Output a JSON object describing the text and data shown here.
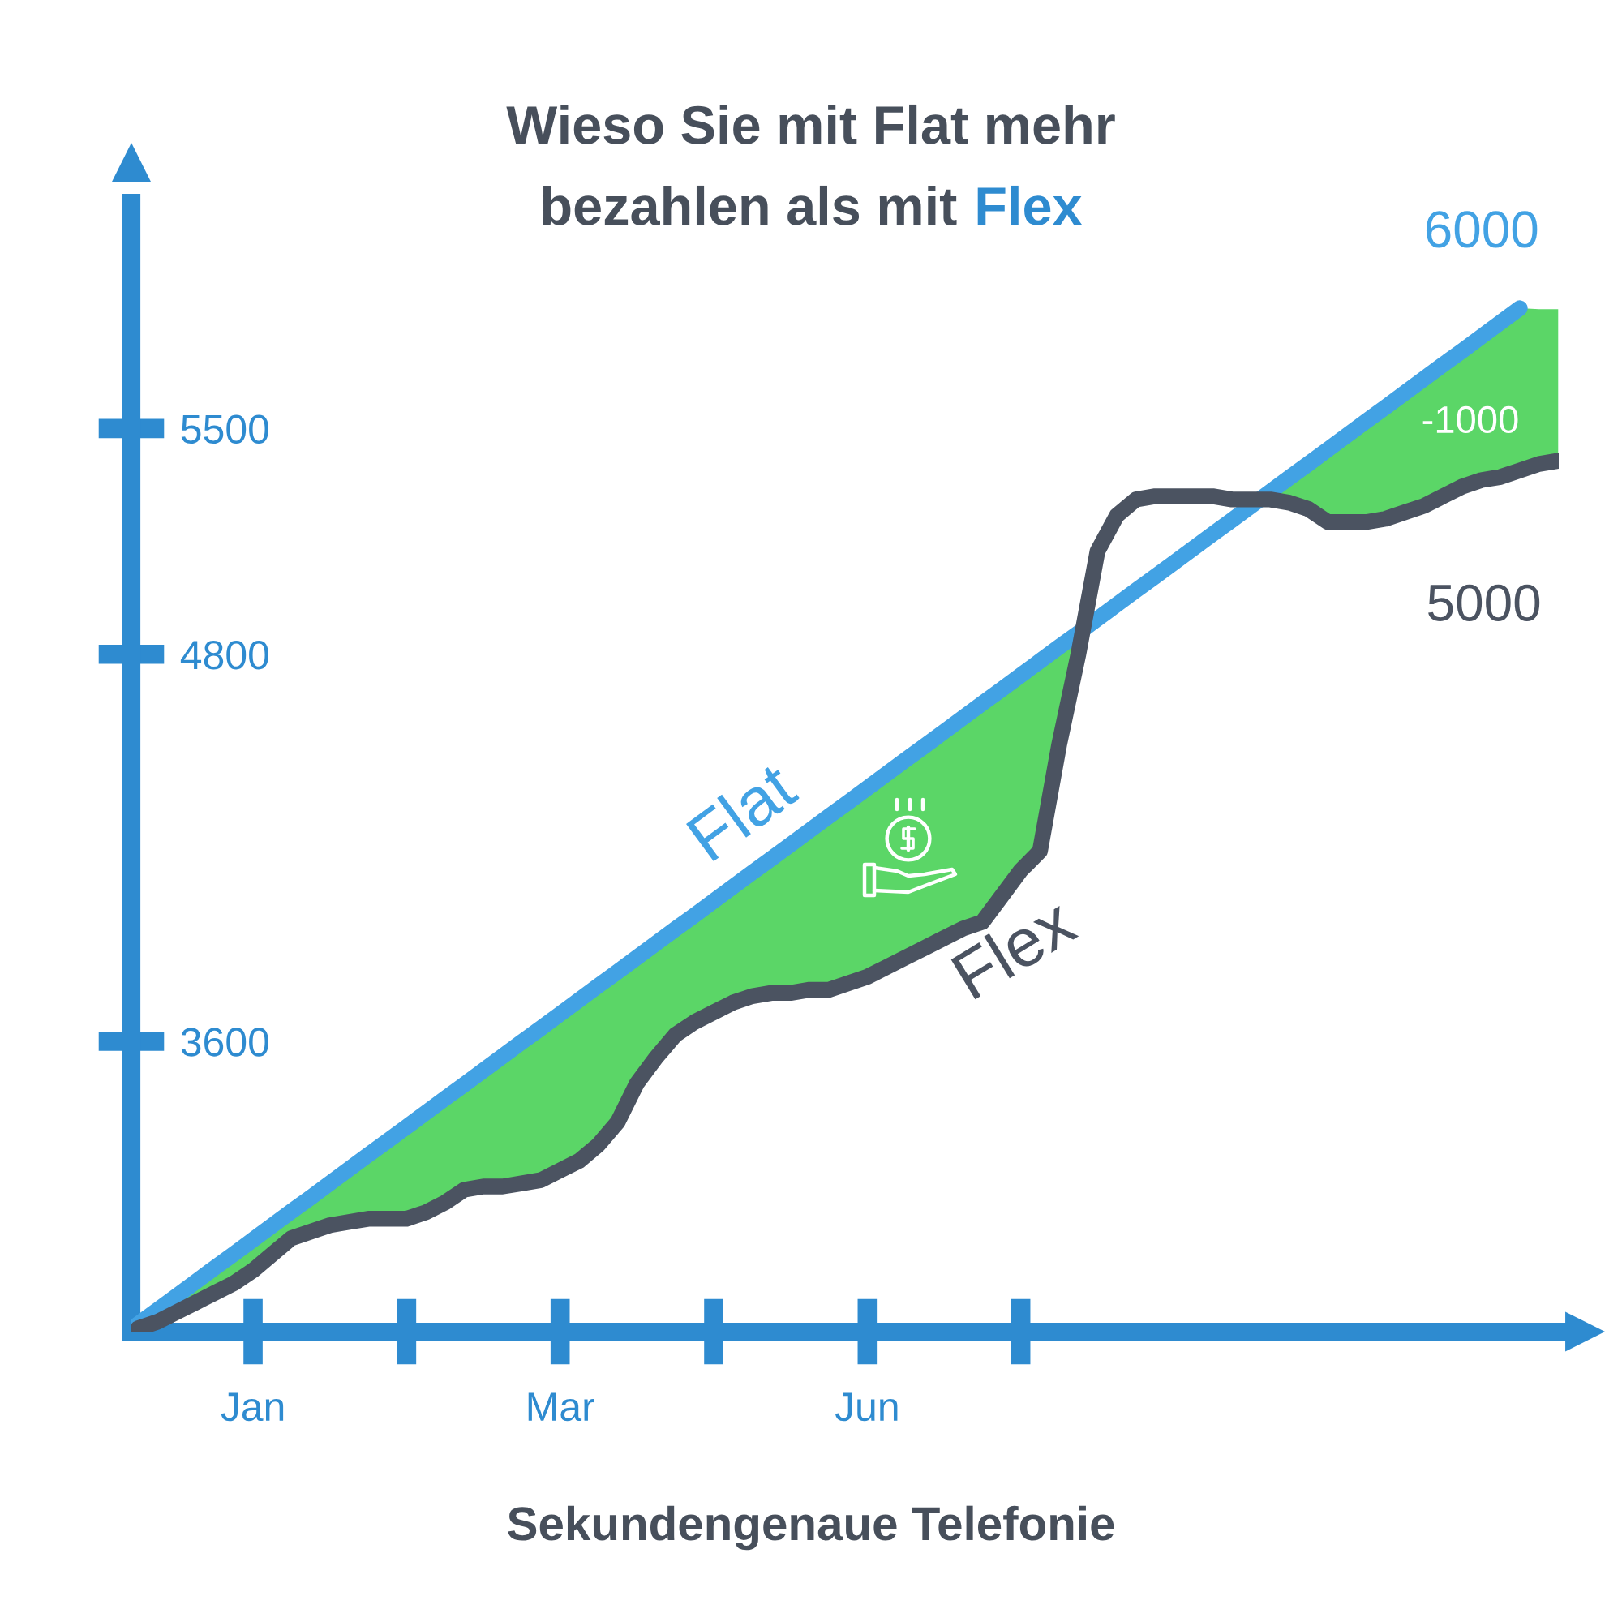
{
  "chart_data": {
    "type": "line",
    "title": "Wieso Sie mit Flat mehr\nbezahlen als mit Flex",
    "categories": [
      null,
      null,
      null,
      null,
      null,
      null,
      "Jan",
      null,
      null,
      null,
      null,
      null,
      null,
      null,
      null,
      null,
      null,
      null,
      null,
      null,
      null,
      null,
      "Mar",
      null,
      null,
      null,
      null,
      null,
      null,
      null,
      null,
      null,
      null,
      null,
      null,
      null,
      null,
      null,
      "Jun",
      null,
      null,
      null,
      null,
      null,
      null,
      null,
      null,
      null,
      null,
      null,
      null,
      null,
      null,
      null,
      null,
      null,
      null,
      null,
      null,
      null,
      null,
      null,
      null,
      null,
      null,
      null,
      null,
      null,
      null,
      null,
      null,
      null,
      null,
      null,
      null
    ],
    "ylim": [
      2700,
      6200
    ],
    "yticks": [
      3600,
      4800,
      5500
    ],
    "series": [
      {
        "type": "area",
        "color": "#5bd667",
        "values": [
          2723,
          2766,
          2810,
          2854,
          2898,
          2941,
          2985,
          3029,
          3073,
          3116,
          3160,
          3204,
          3248,
          3291,
          3335,
          3379,
          3423,
          3466,
          3510,
          3554,
          3598,
          3641,
          3685,
          3729,
          3773,
          3816,
          3860,
          3904,
          3948,
          3991,
          4035,
          4079,
          4123,
          4166,
          4210,
          4254,
          4298,
          4341,
          4385,
          4429,
          4473,
          4516,
          4560,
          4604,
          4648,
          4691,
          4735,
          4779,
          4823,
          4866,
          4910,
          4954,
          4998,
          5041,
          5085,
          5129,
          5173,
          5216,
          5260,
          5304,
          5348,
          5391,
          5435,
          5479,
          5523,
          5566,
          5610,
          5654,
          5698,
          5741,
          5785,
          5829,
          5873,
          5870,
          5870
        ]
      },
      {
        "name": "Flat",
        "color": "#42a2e4",
        "values": [
          2723,
          2766,
          2810,
          2854,
          2898,
          2941,
          2985,
          3029,
          3073,
          3116,
          3160,
          3204,
          3248,
          3291,
          3335,
          3379,
          3423,
          3466,
          3510,
          3554,
          3598,
          3641,
          3685,
          3729,
          3773,
          3816,
          3860,
          3904,
          3948,
          3991,
          4035,
          4079,
          4123,
          4166,
          4210,
          4254,
          4298,
          4341,
          4385,
          4429,
          4473,
          4516,
          4560,
          4604,
          4648,
          4691,
          4735,
          4779,
          4823,
          4866,
          4910,
          4954,
          4998,
          5041,
          5085,
          5129,
          5173,
          5216,
          5260,
          5304,
          5348,
          5391,
          5435,
          5479,
          5523,
          5566,
          5610,
          5654,
          5698,
          5741,
          5785,
          5829,
          5873,
          null,
          null
        ]
      },
      {
        "name": "Flex",
        "color": "#4b5361",
        "values": [
          2710,
          2730,
          2760,
          2790,
          2820,
          2850,
          2890,
          2940,
          2990,
          3010,
          3030,
          3040,
          3050,
          3050,
          3050,
          3070,
          3100,
          3140,
          3150,
          3150,
          3160,
          3170,
          3200,
          3230,
          3280,
          3350,
          3470,
          3550,
          3620,
          3660,
          3690,
          3720,
          3740,
          3750,
          3750,
          3760,
          3760,
          3780,
          3800,
          3830,
          3860,
          3890,
          3920,
          3950,
          3970,
          4050,
          4130,
          4190,
          4520,
          4800,
          5120,
          5230,
          5280,
          5290,
          5290,
          5290,
          5290,
          5280,
          5280,
          5280,
          5270,
          5250,
          5210,
          5210,
          5210,
          5220,
          5240,
          5260,
          5290,
          5320,
          5340,
          5350,
          5370,
          5390,
          5400
        ]
      }
    ],
    "annotations": [
      "6000",
      "5000",
      "-1000",
      "Sekundengenaue Telefonie"
    ],
    "grid": false,
    "legend": false,
    "marker": "none",
    "line_style": "solid"
  }
}
